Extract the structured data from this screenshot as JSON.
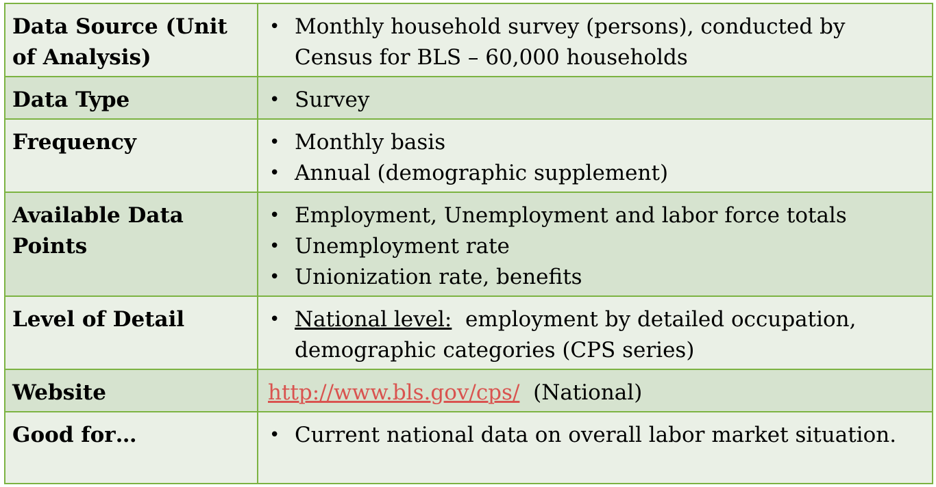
{
  "rows": [
    {
      "label": "Data Source (Unit of Analysis)",
      "bullets": [
        "Monthly household survey (persons), conducted by Census for BLS – 60,000 households"
      ]
    },
    {
      "label": "Data Type",
      "bullets": [
        "Survey"
      ]
    },
    {
      "label": "Frequency",
      "bullets": [
        "Monthly basis",
        "Annual (demographic supplement)"
      ]
    },
    {
      "label": "Available Data Points",
      "bullets": [
        "Employment, Unemployment and labor force totals",
        "Unemployment rate",
        "Unionization rate, benefits"
      ]
    },
    {
      "label": "Level of Detail",
      "detail_underlined": "National level:",
      "detail_rest": "  employment by detailed occupation, demographic categories (CPS series)"
    },
    {
      "label": "Website",
      "link": "http://www.bls.gov/cps/",
      "link_suffix": "  (National)"
    },
    {
      "label": "Good for…",
      "bullets": [
        "Current national data on overall labor market situation."
      ]
    }
  ],
  "bullet_glyph": "•",
  "colors": {
    "border": "#7cb342",
    "row_light": "#eaf0e6",
    "row_dark": "#d6e3cf",
    "link": "#d9534f"
  }
}
